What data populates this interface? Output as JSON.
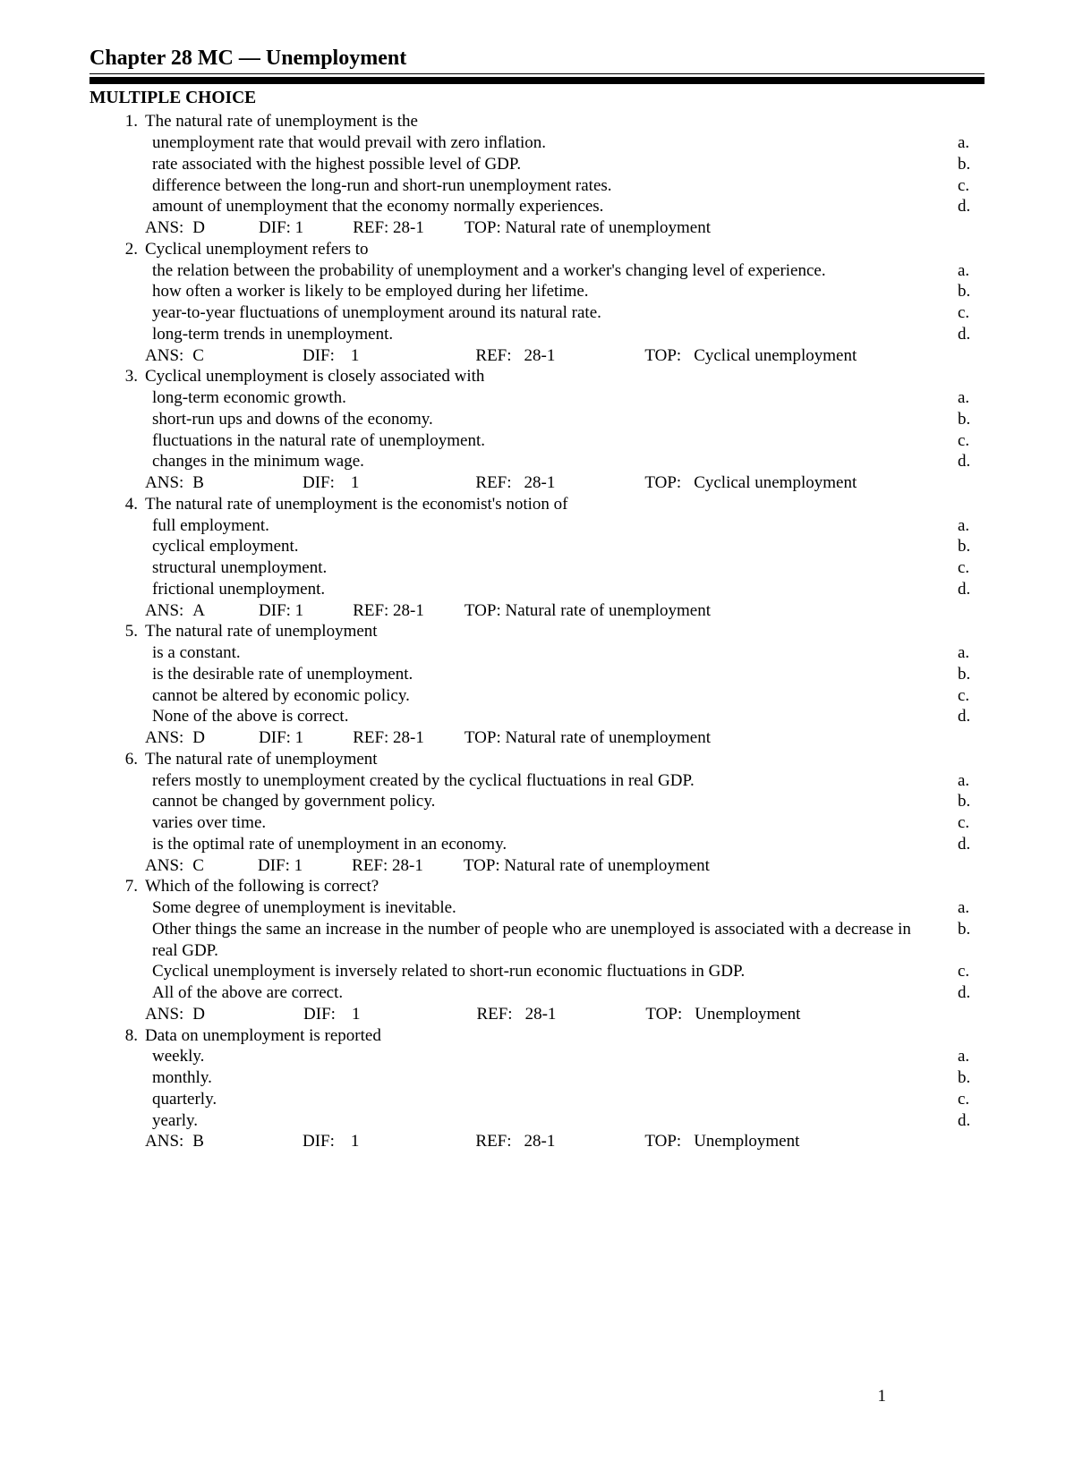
{
  "title": "Chapter 28 MC — Unemployment",
  "section_heading": "MULTIPLE CHOICE",
  "page_number": "1",
  "colors": {
    "text": "#000000",
    "bg": "#ffffff",
    "rule": "#000000"
  },
  "typography": {
    "family": "Times New Roman",
    "body_size_pt": 14,
    "title_size_pt": 18
  },
  "layout": {
    "meta_style": [
      "compact",
      "wide"
    ]
  },
  "questions": [
    {
      "num": "1.",
      "stem": "The natural rate of unemployment is the",
      "choices": [
        {
          "text": "unemployment rate that would prevail with zero inflation.",
          "letter": "a."
        },
        {
          "text": "rate associated with the highest possible level of GDP.",
          "letter": "b."
        },
        {
          "text": "difference between the long-run and short-run unemployment rates.",
          "letter": "c."
        },
        {
          "text": "amount of unemployment that the economy normally experiences.",
          "letter": "d."
        }
      ],
      "meta": {
        "style": "compact",
        "ans": "D",
        "dif": "1",
        "ref": "28-1",
        "top": "Natural rate of unemployment"
      }
    },
    {
      "num": "2.",
      "stem": "Cyclical unemployment refers to",
      "choices": [
        {
          "text": "the relation between the probability of unemployment and a worker's changing level of experience.",
          "letter": "a."
        },
        {
          "text": "how often a worker is likely to be employed during her lifetime.",
          "letter": "b."
        },
        {
          "text": "year-to-year fluctuations of unemployment around its natural rate.",
          "letter": "c."
        },
        {
          "text": "long-term trends in unemployment.",
          "letter": "d."
        }
      ],
      "meta": {
        "style": "wide",
        "ans": "C",
        "dif": "1",
        "ref": "28-1",
        "top": "Cyclical unemployment"
      }
    },
    {
      "num": "3.",
      "stem": "Cyclical unemployment is closely associated with",
      "choices": [
        {
          "text": "long-term economic growth.",
          "letter": "a."
        },
        {
          "text": "short-run ups and downs of the economy.",
          "letter": "b."
        },
        {
          "text": "fluctuations in the natural rate of unemployment.",
          "letter": "c."
        },
        {
          "text": "changes in the minimum wage.",
          "letter": "d."
        }
      ],
      "meta": {
        "style": "wide",
        "ans": "B",
        "dif": "1",
        "ref": "28-1",
        "top": "Cyclical unemployment"
      }
    },
    {
      "num": "4.",
      "stem": "The natural rate of unemployment is the economist's notion of",
      "choices": [
        {
          "text": "full employment.",
          "letter": "a."
        },
        {
          "text": "cyclical employment.",
          "letter": "b."
        },
        {
          "text": "structural unemployment.",
          "letter": "c."
        },
        {
          "text": "frictional unemployment.",
          "letter": "d."
        }
      ],
      "meta": {
        "style": "compact",
        "ans": "A",
        "dif": "1",
        "ref": "28-1",
        "top": "Natural rate of unemployment"
      }
    },
    {
      "num": "5.",
      "stem": "The natural rate of unemployment",
      "choices": [
        {
          "text": "is a constant.",
          "letter": "a."
        },
        {
          "text": "is the desirable rate of unemployment.",
          "letter": "b."
        },
        {
          "text": "cannot be altered by economic policy.",
          "letter": "c."
        },
        {
          "text": "None of the above is correct.",
          "letter": "d."
        }
      ],
      "meta": {
        "style": "compact",
        "ans": "D",
        "dif": "1",
        "ref": "28-1",
        "top": "Natural rate of unemployment"
      }
    },
    {
      "num": "6.",
      "stem": "The natural rate of unemployment",
      "choices": [
        {
          "text": "refers mostly to unemployment created by the cyclical fluctuations in real GDP.",
          "letter": "a."
        },
        {
          "text": "cannot be changed by government policy.",
          "letter": "b."
        },
        {
          "text": "varies over time.",
          "letter": "c."
        },
        {
          "text": "is the optimal rate of unemployment in an economy.",
          "letter": "d."
        }
      ],
      "meta": {
        "style": "compact",
        "ans": "C",
        "dif": "1",
        "ref": "28-1",
        "top": "Natural rate of unemployment"
      }
    },
    {
      "num": "7.",
      "stem": "Which of the following is correct?",
      "choices": [
        {
          "text": "Some degree of unemployment is inevitable.",
          "letter": "a."
        },
        {
          "text": "Other things the same an increase in the number of people who are unemployed is associated with a decrease in real GDP.",
          "letter": "b."
        },
        {
          "text": "Cyclical unemployment is inversely related to short-run economic fluctuations in GDP.",
          "letter": "c."
        },
        {
          "text": "All of the above are correct.",
          "letter": "d."
        }
      ],
      "meta": {
        "style": "wide",
        "ans": "D",
        "dif": "1",
        "ref": "28-1",
        "top": "Unemployment"
      }
    },
    {
      "num": "8.",
      "stem": "Data on unemployment is reported",
      "choices": [
        {
          "text": "weekly.",
          "letter": "a."
        },
        {
          "text": "monthly.",
          "letter": "b."
        },
        {
          "text": "quarterly.",
          "letter": "c."
        },
        {
          "text": "yearly.",
          "letter": "d."
        }
      ],
      "meta": {
        "style": "wide",
        "ans": "B",
        "dif": "1",
        "ref": "28-1",
        "top": "Unemployment"
      }
    }
  ]
}
